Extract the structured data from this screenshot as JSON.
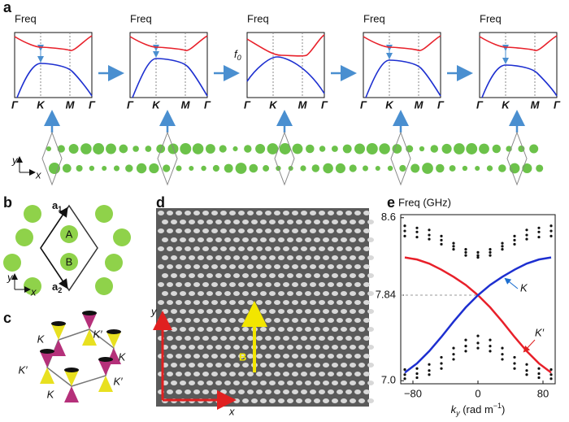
{
  "panel_labels": [
    "a",
    "b",
    "c",
    "d",
    "e"
  ],
  "panel_a": {
    "plots": [
      {
        "title": "Freq",
        "x_labels": [
          "Γ",
          "K",
          "M",
          "Γ"
        ]
      },
      {
        "title": "Freq",
        "x_labels": [
          "Γ",
          "K",
          "M",
          "Γ"
        ]
      },
      {
        "title": "Freq",
        "x_labels": [
          "Γ",
          "K",
          "M",
          "Γ"
        ],
        "level": {
          "base": "f",
          "sub": "0"
        }
      },
      {
        "title": "Freq",
        "x_labels": [
          "Γ",
          "K",
          "M",
          "Γ"
        ]
      },
      {
        "title": "Freq",
        "x_labels": [
          "Γ",
          "K",
          "M",
          "Γ"
        ]
      }
    ],
    "axes": {
      "y": "y",
      "x": "x"
    }
  },
  "panel_b": {
    "a1": {
      "base": "a",
      "sub": "1"
    },
    "a2": {
      "base": "a",
      "sub": "2"
    },
    "sites": [
      "A",
      "B"
    ],
    "axes": {
      "y": "y",
      "x": "x"
    }
  },
  "panel_c": {
    "valleys": [
      "K",
      "K′",
      "K",
      "K′",
      "K",
      "K′"
    ]
  },
  "panel_d": {
    "axes": {
      "y": "y",
      "x": "x"
    },
    "field": "B"
  },
  "chart_data": {
    "type": "line",
    "title": "Freq (GHz)",
    "xlabel": {
      "base": "k",
      "sub": "y",
      "unit": " (rad m",
      "sup": "−1",
      "close": ")"
    },
    "x": [
      -90,
      -75,
      -60,
      -45,
      -30,
      -15,
      0,
      15,
      30,
      45,
      60,
      75,
      90
    ],
    "series": [
      {
        "name": "K′",
        "color": "#e8202a",
        "values": [
          8.21,
          8.19,
          8.15,
          8.09,
          8.02,
          7.94,
          7.84,
          7.72,
          7.58,
          7.43,
          7.29,
          7.17,
          7.08
        ]
      },
      {
        "name": "K",
        "color": "#1d2fd0",
        "values": [
          7.08,
          7.17,
          7.29,
          7.43,
          7.58,
          7.72,
          7.84,
          7.94,
          8.02,
          8.09,
          8.15,
          8.19,
          8.21
        ]
      },
      {
        "color": "#111111",
        "values": [
          8.52,
          8.5,
          8.48,
          8.42,
          8.35,
          8.29,
          8.26,
          8.29,
          8.35,
          8.42,
          8.48,
          8.5,
          8.52
        ]
      },
      {
        "color": "#111111",
        "values": [
          8.47,
          8.46,
          8.43,
          8.38,
          8.32,
          8.26,
          8.23,
          8.26,
          8.32,
          8.38,
          8.43,
          8.46,
          8.47
        ]
      },
      {
        "color": "#111111",
        "values": [
          8.42,
          8.41,
          8.39,
          8.34,
          8.29,
          8.23,
          8.21,
          8.23,
          8.29,
          8.34,
          8.39,
          8.41,
          8.42
        ]
      },
      {
        "color": "#111111",
        "values": [
          7.11,
          7.12,
          7.16,
          7.23,
          7.32,
          7.4,
          7.44,
          7.4,
          7.32,
          7.23,
          7.16,
          7.12,
          7.11
        ]
      },
      {
        "color": "#111111",
        "values": [
          7.06,
          7.07,
          7.1,
          7.17,
          7.26,
          7.34,
          7.37,
          7.34,
          7.26,
          7.17,
          7.1,
          7.07,
          7.06
        ]
      },
      {
        "color": "#111111",
        "values": [
          7.02,
          7.03,
          7.06,
          7.12,
          7.21,
          7.29,
          7.32,
          7.29,
          7.21,
          7.12,
          7.06,
          7.03,
          7.02
        ]
      }
    ],
    "xlim": [
      -95,
      95
    ],
    "ylim": [
      6.97,
      8.63
    ],
    "xticks": [
      {
        "value": -80,
        "label": "−80"
      },
      0,
      80
    ],
    "yticks": [
      8.6,
      7.84,
      {
        "value": 7,
        "label": "7.0"
      }
    ]
  }
}
